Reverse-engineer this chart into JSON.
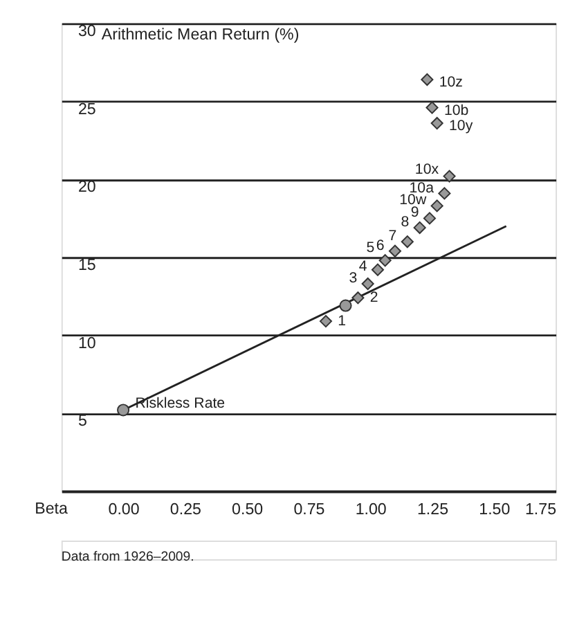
{
  "chart_data": {
    "type": "scatter",
    "xlabel": "Beta",
    "ylabel": "Arithmetic Mean Return (%)",
    "series": [
      {
        "type": "line",
        "color": "#222222",
        "x": [
          0.0,
          1.55
        ],
        "values": [
          5.2,
          17.0
        ],
        "marker": "none"
      },
      {
        "color": "#999999",
        "marker": "circle",
        "x": [
          0.0,
          0.9
        ],
        "values": [
          5.2,
          11.9
        ]
      },
      {
        "color": "#999999",
        "marker": "diamond",
        "x": [
          0.82,
          0.95,
          0.99,
          1.03,
          1.06,
          1.1,
          1.15,
          1.2,
          1.24,
          1.27,
          1.3,
          1.32,
          1.23,
          1.25,
          1.27
        ],
        "values": [
          10.9,
          12.4,
          13.3,
          14.2,
          14.8,
          15.4,
          16.0,
          16.9,
          17.5,
          18.3,
          19.1,
          20.2,
          26.4,
          24.6,
          23.6
        ]
      }
    ],
    "annotations": [
      {
        "text": "Riskless Rate",
        "x": 0.0,
        "y": 5.2
      },
      {
        "text": "1",
        "x": 0.82,
        "y": 10.9
      },
      {
        "text": "2",
        "x": 0.95,
        "y": 12.4
      },
      {
        "text": "3",
        "x": 0.99,
        "y": 13.3
      },
      {
        "text": "4",
        "x": 1.03,
        "y": 14.2
      },
      {
        "text": "5",
        "x": 1.06,
        "y": 14.8
      },
      {
        "text": "6",
        "x": 1.1,
        "y": 15.4
      },
      {
        "text": "7",
        "x": 1.15,
        "y": 16.0
      },
      {
        "text": "8",
        "x": 1.2,
        "y": 16.9
      },
      {
        "text": "9",
        "x": 1.24,
        "y": 17.5
      },
      {
        "text": "10w",
        "x": 1.27,
        "y": 18.3
      },
      {
        "text": "10a",
        "x": 1.3,
        "y": 19.1
      },
      {
        "text": "10x",
        "x": 1.32,
        "y": 20.2
      },
      {
        "text": "10z",
        "x": 1.23,
        "y": 26.4
      },
      {
        "text": "10b",
        "x": 1.25,
        "y": 24.6
      },
      {
        "text": "10y",
        "x": 1.27,
        "y": 23.6
      },
      "Data from 1926–2009."
    ],
    "xlim": [
      -0.25,
      1.75
    ],
    "xticks": [
      {
        "value": 0.0,
        "label": "0.00"
      },
      {
        "value": 0.25,
        "label": "0.25"
      },
      {
        "value": 0.5,
        "label": "0.50"
      },
      {
        "value": 0.75,
        "label": "0.75"
      },
      {
        "value": 1.0,
        "label": "1.00"
      },
      {
        "value": 1.25,
        "label": "1.25"
      },
      {
        "value": 1.5,
        "label": "1.50"
      },
      {
        "value": 1.75,
        "label": "1.75"
      }
    ],
    "ylim": [
      0,
      30
    ],
    "yticks": [
      5,
      10,
      15,
      20,
      25,
      30
    ],
    "grid": "y"
  }
}
